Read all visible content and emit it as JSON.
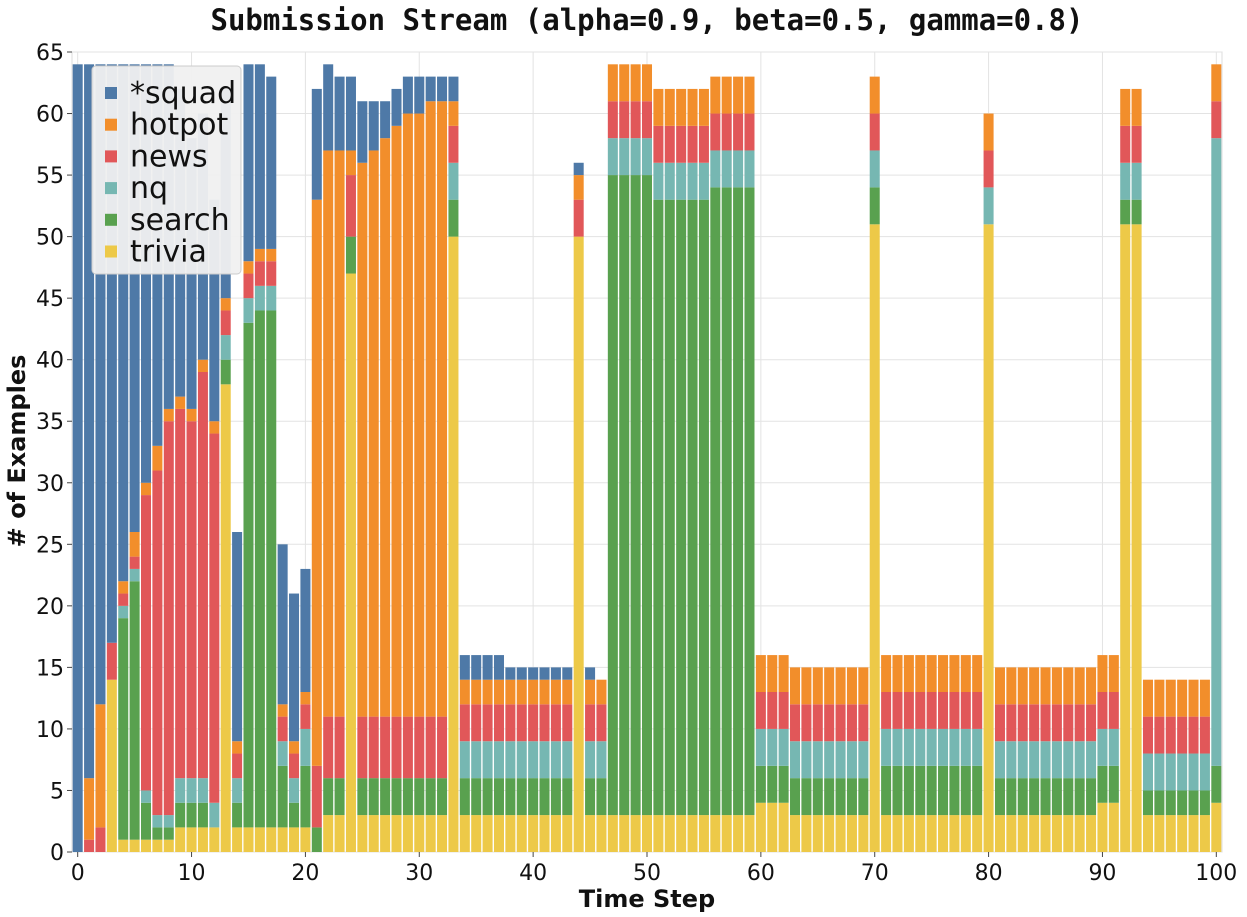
{
  "chart_data": {
    "type": "bar",
    "stacked": true,
    "title": "Submission Stream (alpha=0.9, beta=0.5, gamma=0.8)",
    "xlabel": "Time Step",
    "ylabel": "# of Examples",
    "xlim": [
      0,
      100
    ],
    "ylim": [
      0,
      65
    ],
    "grid": true,
    "legend_position": "top-left",
    "x_ticks": [
      0,
      10,
      20,
      30,
      40,
      50,
      60,
      70,
      80,
      90,
      100
    ],
    "y_ticks": [
      0,
      5,
      10,
      15,
      20,
      25,
      30,
      35,
      40,
      45,
      50,
      55,
      60,
      65
    ],
    "series": [
      {
        "name": "trivia",
        "color": "#edc948",
        "values": [
          0,
          0,
          0,
          14,
          1,
          1,
          1,
          1,
          1,
          2,
          2,
          2,
          2,
          38,
          2,
          2,
          2,
          2,
          2,
          2,
          2,
          0,
          3,
          3,
          47,
          3,
          3,
          3,
          3,
          3,
          3,
          3,
          3,
          50,
          3,
          3,
          3,
          3,
          3,
          3,
          3,
          3,
          3,
          3,
          50,
          3,
          3,
          3,
          3,
          3,
          3,
          3,
          3,
          3,
          3,
          3,
          3,
          3,
          3,
          3,
          4,
          4,
          4,
          3,
          3,
          3,
          3,
          3,
          3,
          3,
          51,
          3,
          3,
          3,
          3,
          3,
          3,
          3,
          3,
          3,
          51,
          3,
          3,
          3,
          3,
          3,
          3,
          3,
          3,
          3,
          4,
          4,
          51,
          51,
          3,
          3,
          3,
          3,
          3,
          3,
          4
        ]
      },
      {
        "name": "search",
        "color": "#59a14f",
        "values": [
          0,
          0,
          0,
          0,
          18,
          21,
          3,
          1,
          1,
          2,
          2,
          2,
          0,
          2,
          2,
          41,
          42,
          42,
          5,
          2,
          5,
          2,
          3,
          3,
          3,
          3,
          3,
          3,
          3,
          3,
          3,
          3,
          3,
          3,
          3,
          3,
          3,
          3,
          3,
          3,
          3,
          3,
          3,
          3,
          0,
          3,
          3,
          52,
          52,
          52,
          52,
          50,
          50,
          50,
          50,
          50,
          51,
          51,
          51,
          51,
          3,
          3,
          3,
          3,
          3,
          3,
          3,
          3,
          3,
          3,
          3,
          4,
          4,
          4,
          4,
          4,
          4,
          4,
          4,
          4,
          0,
          3,
          3,
          3,
          3,
          3,
          3,
          3,
          3,
          3,
          3,
          3,
          2,
          2,
          2,
          2,
          2,
          2,
          2,
          2,
          3
        ]
      },
      {
        "name": "nq",
        "color": "#76b7b2",
        "values": [
          0,
          0,
          0,
          0,
          1,
          1,
          1,
          1,
          1,
          2,
          2,
          2,
          2,
          2,
          2,
          2,
          2,
          2,
          2,
          2,
          3,
          0,
          0,
          0,
          0,
          0,
          0,
          0,
          0,
          0,
          0,
          0,
          0,
          3,
          3,
          3,
          3,
          3,
          3,
          3,
          3,
          3,
          3,
          3,
          0,
          3,
          3,
          3,
          3,
          3,
          3,
          3,
          3,
          3,
          3,
          3,
          3,
          3,
          3,
          3,
          3,
          3,
          3,
          3,
          3,
          3,
          3,
          3,
          3,
          3,
          3,
          3,
          3,
          3,
          3,
          3,
          3,
          3,
          3,
          3,
          3,
          3,
          3,
          3,
          3,
          3,
          3,
          3,
          3,
          3,
          3,
          3,
          3,
          3,
          3,
          3,
          3,
          3,
          3,
          3,
          51
        ]
      },
      {
        "name": "news",
        "color": "#e15759",
        "values": [
          0,
          1,
          2,
          3,
          1,
          1,
          24,
          28,
          32,
          30,
          29,
          33,
          30,
          2,
          2,
          2,
          2,
          2,
          2,
          2,
          2,
          5,
          5,
          5,
          5,
          5,
          5,
          5,
          5,
          5,
          5,
          5,
          5,
          3,
          3,
          3,
          3,
          3,
          3,
          3,
          3,
          3,
          3,
          3,
          3,
          3,
          3,
          3,
          3,
          3,
          3,
          3,
          3,
          3,
          3,
          3,
          3,
          3,
          3,
          3,
          3,
          3,
          3,
          3,
          3,
          3,
          3,
          3,
          3,
          3,
          3,
          3,
          3,
          3,
          3,
          3,
          3,
          3,
          3,
          3,
          3,
          3,
          3,
          3,
          3,
          3,
          3,
          3,
          3,
          3,
          3,
          3,
          3,
          3,
          3,
          3,
          3,
          3,
          3,
          3,
          3
        ]
      },
      {
        "name": "hotpot",
        "color": "#f28e2b",
        "values": [
          0,
          5,
          10,
          0,
          1,
          2,
          1,
          2,
          1,
          1,
          1,
          1,
          1,
          1,
          1,
          1,
          1,
          1,
          1,
          1,
          1,
          46,
          46,
          46,
          2,
          45,
          46,
          47,
          48,
          49,
          49,
          50,
          50,
          2,
          2,
          2,
          2,
          2,
          2,
          2,
          2,
          2,
          2,
          2,
          2,
          2,
          2,
          3,
          3,
          3,
          3,
          3,
          3,
          3,
          3,
          3,
          3,
          3,
          3,
          3,
          3,
          3,
          3,
          3,
          3,
          3,
          3,
          3,
          3,
          3,
          3,
          3,
          3,
          3,
          3,
          3,
          3,
          3,
          3,
          3,
          3,
          3,
          3,
          3,
          3,
          3,
          3,
          3,
          3,
          3,
          3,
          3,
          3,
          3,
          3,
          3,
          3,
          3,
          3,
          3,
          3
        ]
      },
      {
        "name": "*squad",
        "color": "#4e79a7",
        "values": [
          64,
          58,
          52,
          47,
          42,
          38,
          34,
          31,
          28,
          25,
          22,
          20,
          18,
          17,
          17,
          16,
          15,
          14,
          13,
          12,
          10,
          9,
          7,
          6,
          6,
          5,
          4,
          3,
          3,
          3,
          3,
          2,
          2,
          2,
          2,
          2,
          2,
          2,
          1,
          1,
          1,
          1,
          1,
          1,
          1,
          1,
          0,
          0,
          0,
          0,
          0,
          0,
          0,
          0,
          0,
          0,
          0,
          0,
          0,
          0,
          0,
          0,
          0,
          0,
          0,
          0,
          0,
          0,
          0,
          0,
          0,
          0,
          0,
          0,
          0,
          0,
          0,
          0,
          0,
          0,
          0,
          0,
          0,
          0,
          0,
          0,
          0,
          0,
          0,
          0,
          0,
          0,
          0,
          0,
          0,
          0,
          0,
          0,
          0,
          0,
          0
        ]
      }
    ]
  }
}
